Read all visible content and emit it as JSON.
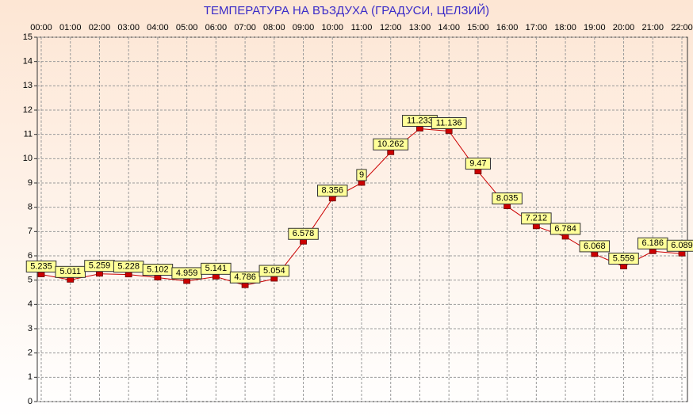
{
  "chart_data": {
    "type": "line",
    "title": "ТЕМПЕРАТУРА НА ВЪЗДУХА  (ГРАДУСИ, ЦЕЛЗИЙ)",
    "categories": [
      "00:00",
      "01:00",
      "02:00",
      "03:00",
      "04:00",
      "05:00",
      "06:00",
      "07:00",
      "08:00",
      "09:00",
      "10:00",
      "11:00",
      "12:00",
      "13:00",
      "14:00",
      "15:00",
      "16:00",
      "17:00",
      "18:00",
      "19:00",
      "20:00",
      "21:00",
      "22:00"
    ],
    "values": [
      5.235,
      5.011,
      5.259,
      5.228,
      5.102,
      4.959,
      5.141,
      4.786,
      5.054,
      6.578,
      8.356,
      9,
      10.262,
      11.233,
      11.136,
      9.47,
      8.035,
      7.212,
      6.784,
      6.068,
      5.559,
      6.186,
      6.089
    ],
    "color": "#cc0000",
    "ylim": [
      0,
      15
    ],
    "yticks": [
      0,
      1,
      2,
      3,
      4,
      5,
      6,
      7,
      8,
      9,
      10,
      11,
      12,
      13,
      14,
      15
    ],
    "grid": true
  }
}
